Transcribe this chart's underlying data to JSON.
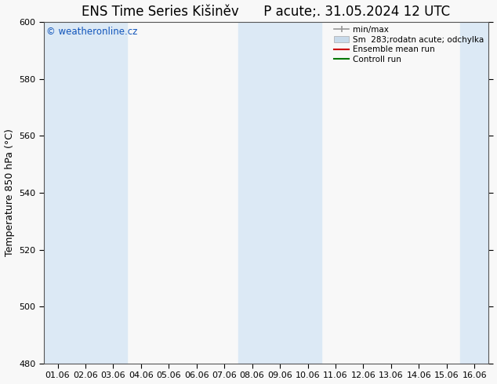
{
  "title": "ENS Time Series Kišiněv      P acute;. 31.05.2024 12 UTC",
  "ylabel": "Temperature 850 hPa (°C)",
  "ylim": [
    480,
    600
  ],
  "yticks": [
    480,
    500,
    520,
    540,
    560,
    580,
    600
  ],
  "x_labels": [
    "01.06",
    "02.06",
    "03.06",
    "04.06",
    "05.06",
    "06.06",
    "07.06",
    "08.06",
    "09.06",
    "10.06",
    "11.06",
    "12.06",
    "13.06",
    "14.06",
    "15.06",
    "16.06"
  ],
  "shaded_columns": [
    0,
    1,
    2,
    7,
    8,
    9,
    15
  ],
  "bg_color": "#f8f8f8",
  "shade_color": "#dce9f5",
  "watermark": "© weatheronline.cz",
  "watermark_color": "#1155bb",
  "legend_labels": [
    "min/max",
    "Sm  283;rodatn acute; odchylka",
    "Ensemble mean run",
    "Controll run"
  ],
  "legend_colors": [
    "#999999",
    "#c8daea",
    "#cc0000",
    "#007700"
  ],
  "n_cols": 16,
  "title_fontsize": 12,
  "tick_fontsize": 8,
  "ylabel_fontsize": 9,
  "spine_color": "#555555"
}
